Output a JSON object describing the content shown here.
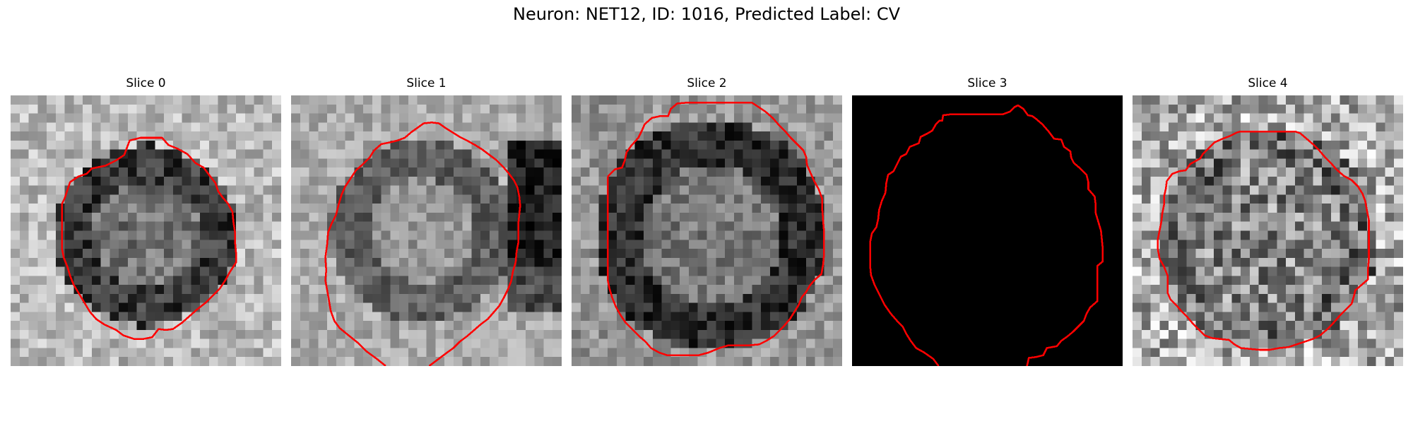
{
  "figure": {
    "title": "Neuron: NET12, ID: 1016, Predicted Label: CV",
    "outline_color": "#ff0000"
  },
  "panels": [
    {
      "title": "Slice 0",
      "blank": false,
      "seed": 11
    },
    {
      "title": "Slice 1",
      "blank": false,
      "seed": 23
    },
    {
      "title": "Slice 2",
      "blank": false,
      "seed": 37
    },
    {
      "title": "Slice 3",
      "blank": true,
      "seed": 0
    },
    {
      "title": "Slice 4",
      "blank": false,
      "seed": 53
    }
  ]
}
